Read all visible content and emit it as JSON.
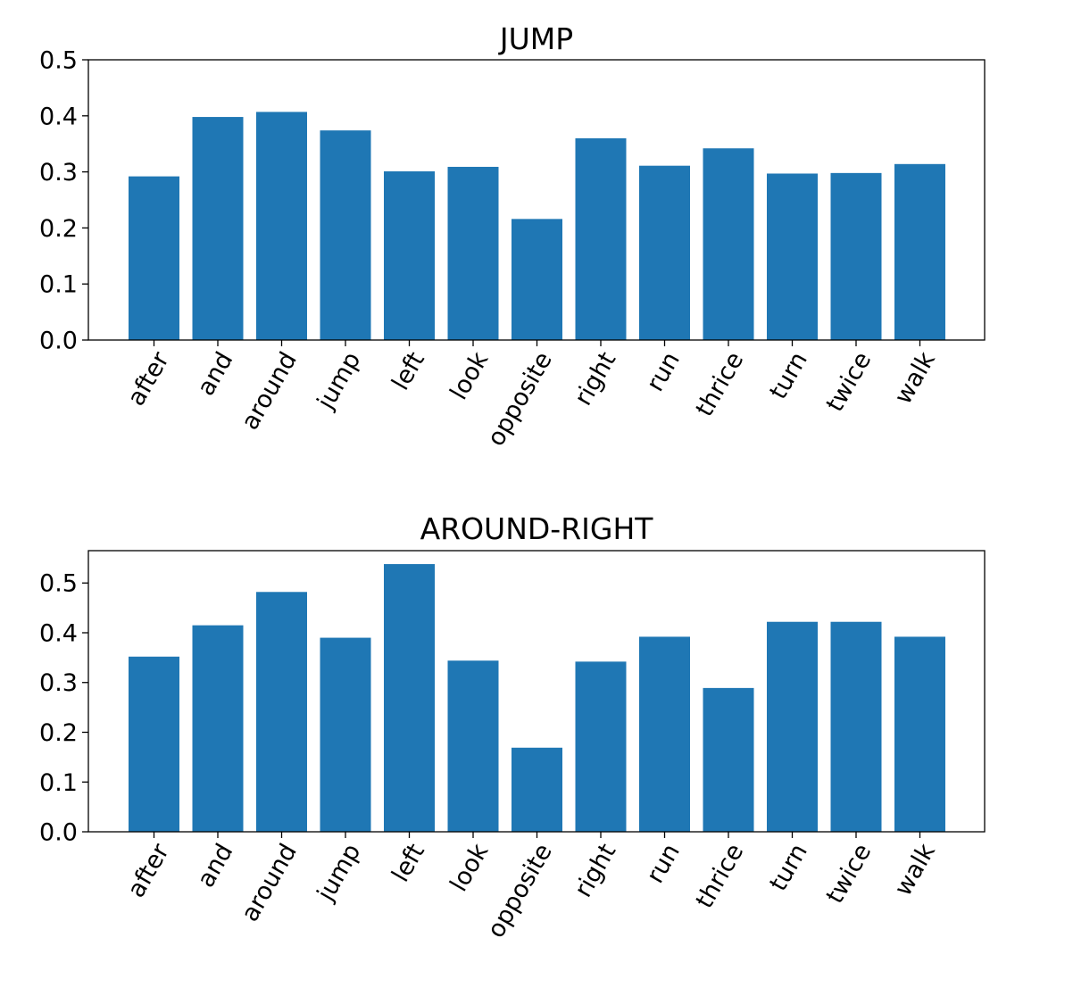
{
  "chart_data": [
    {
      "type": "bar",
      "title": "JUMP",
      "xlabel": "",
      "ylabel": "",
      "categories": [
        "after",
        "and",
        "around",
        "jump",
        "left",
        "look",
        "opposite",
        "right",
        "run",
        "thrice",
        "turn",
        "twice",
        "walk"
      ],
      "values": [
        0.292,
        0.398,
        0.407,
        0.374,
        0.301,
        0.309,
        0.216,
        0.36,
        0.311,
        0.342,
        0.297,
        0.298,
        0.314
      ],
      "ylim": [
        0,
        0.5
      ],
      "yticks": [
        0.0,
        0.1,
        0.2,
        0.3,
        0.4,
        0.5
      ],
      "ytick_labels": [
        "0.0",
        "0.1",
        "0.2",
        "0.3",
        "0.4",
        "0.5"
      ],
      "color": "#1f77b4",
      "grid": false
    },
    {
      "type": "bar",
      "title": "AROUND-RIGHT",
      "xlabel": "",
      "ylabel": "",
      "categories": [
        "after",
        "and",
        "around",
        "jump",
        "left",
        "look",
        "opposite",
        "right",
        "run",
        "thrice",
        "turn",
        "twice",
        "walk"
      ],
      "values": [
        0.352,
        0.415,
        0.482,
        0.39,
        0.538,
        0.344,
        0.169,
        0.342,
        0.392,
        0.289,
        0.422,
        0.422,
        0.392
      ],
      "ylim": [
        0,
        0.565
      ],
      "yticks": [
        0.0,
        0.1,
        0.2,
        0.3,
        0.4,
        0.5
      ],
      "ytick_labels": [
        "0.0",
        "0.1",
        "0.2",
        "0.3",
        "0.4",
        "0.5"
      ],
      "color": "#1f77b4",
      "grid": false
    }
  ]
}
